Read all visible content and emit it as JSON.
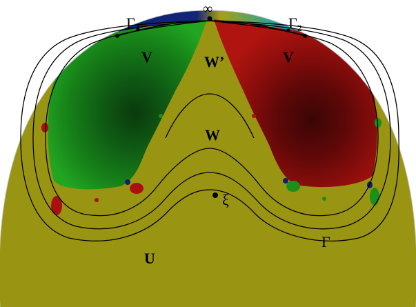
{
  "colors": {
    "background_region": "#9a9413",
    "green_basin": "#1a8f1a",
    "green_core": "#0a3a0c",
    "red_basin": "#a8110f",
    "red_core": "#3a0505",
    "outer_dark": "#0f1f6e",
    "outer_teal": "#1aa3b0",
    "curve": "#000000"
  },
  "labels": {
    "infinity": "∞",
    "gamma1_main": "Γ",
    "gamma1_sub": "1",
    "gamma2_main": "Γ",
    "gamma2_sub": "2",
    "v_left": "V",
    "v_right": "V",
    "w_prime": "W’",
    "w": "W",
    "xi": "ξ",
    "gamma": "Γ",
    "u": "U"
  }
}
